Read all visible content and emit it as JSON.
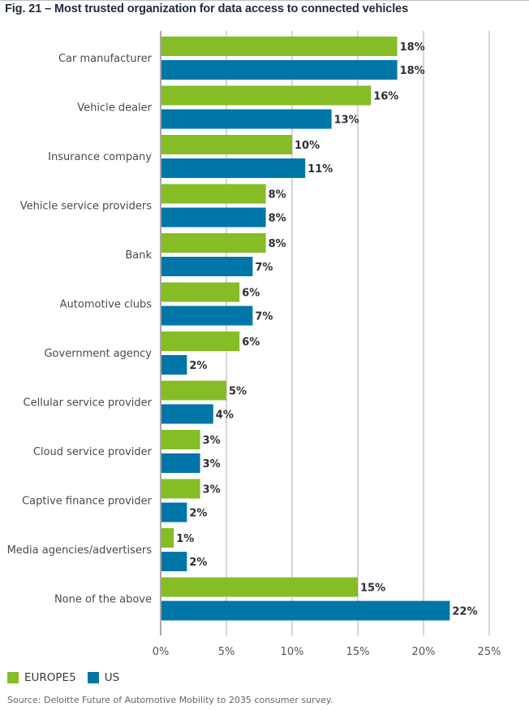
{
  "chart_data": {
    "type": "bar",
    "orientation": "horizontal",
    "title": "Fig. 21 – Most trusted organization for data access to connected vehicles",
    "xlabel": "",
    "ylabel": "",
    "xlim": [
      0,
      25
    ],
    "x_ticks": [
      0,
      5,
      10,
      15,
      20,
      25
    ],
    "x_tick_labels": [
      "0%",
      "5%",
      "10%",
      "15%",
      "20%",
      "25%"
    ],
    "grid": "vertical",
    "legend_position": "bottom-left",
    "categories": [
      "Car manufacturer",
      "Vehicle dealer",
      "Insurance company",
      "Vehicle service providers",
      "Bank",
      "Automotive clubs",
      "Government agency",
      "Cellular service provider",
      "Cloud service provider",
      "Captive finance provider",
      "Media agencies/advertisers",
      "None of the above"
    ],
    "series": [
      {
        "name": "EUROPE5",
        "color": "#86bc25",
        "values": [
          18,
          16,
          10,
          8,
          8,
          6,
          6,
          5,
          3,
          3,
          1,
          15
        ]
      },
      {
        "name": "US",
        "color": "#0076a8",
        "values": [
          18,
          13,
          11,
          8,
          7,
          7,
          2,
          4,
          3,
          2,
          2,
          22
        ]
      }
    ],
    "value_suffix": "%",
    "source": "Source: Deloitte Future of Automotive Mobility to 2035 consumer survey."
  }
}
